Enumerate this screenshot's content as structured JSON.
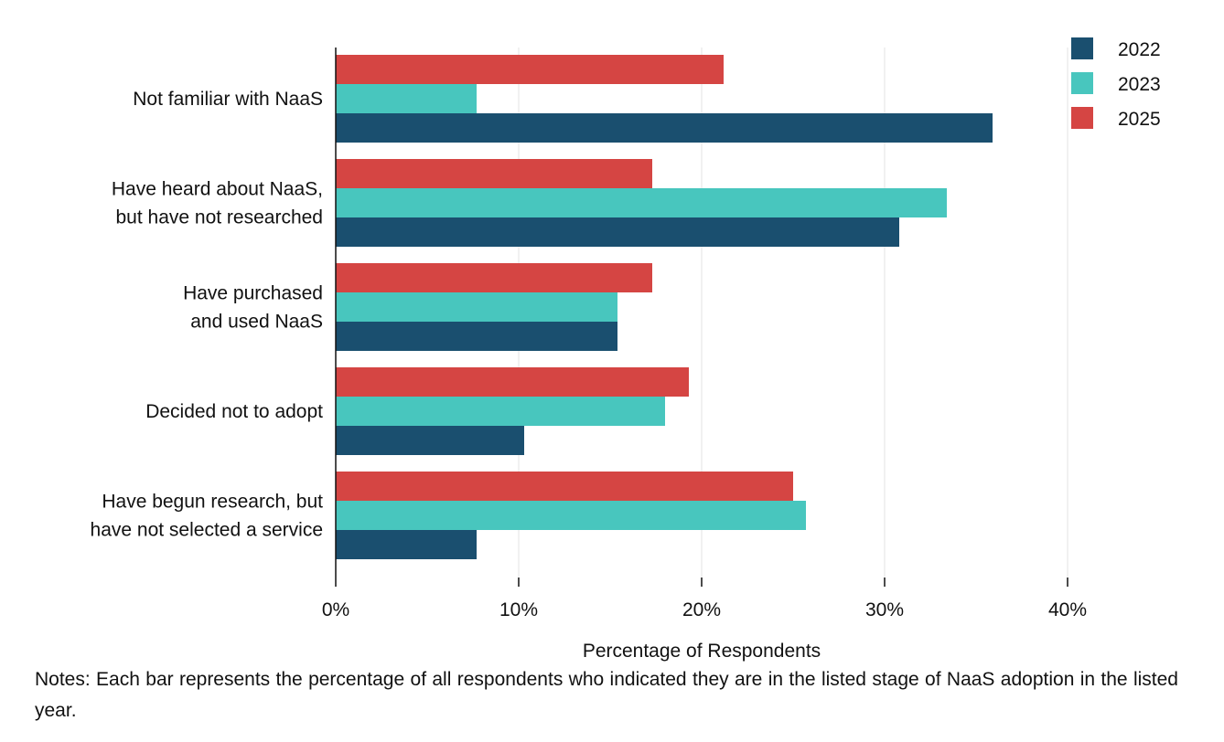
{
  "chart_data": {
    "type": "bar",
    "orientation": "horizontal",
    "categories": [
      [
        "Not familiar with NaaS"
      ],
      [
        "Have heard about NaaS,",
        "but have not researched"
      ],
      [
        "Have purchased",
        "and used NaaS"
      ],
      [
        "Decided not to adopt"
      ],
      [
        "Have begun research, but",
        "have not selected a service"
      ]
    ],
    "series": [
      {
        "name": "2025",
        "color": "#d54543",
        "values": [
          21.2,
          17.3,
          17.3,
          19.3,
          25.0
        ]
      },
      {
        "name": "2023",
        "color": "#48c6be",
        "values": [
          7.7,
          33.4,
          15.4,
          18.0,
          25.7
        ]
      },
      {
        "name": "2022",
        "color": "#1a4f6f",
        "values": [
          35.9,
          30.8,
          15.4,
          10.3,
          7.7
        ]
      }
    ],
    "legend_order": [
      "2022",
      "2023",
      "2025"
    ],
    "legend_position": "top-right",
    "xlim": [
      0,
      40
    ],
    "xticks": [
      "0%",
      "10%",
      "20%",
      "30%",
      "40%"
    ],
    "xlabel": "Percentage of Respondents",
    "grid": true
  },
  "notes": "Notes: Each bar represents the percentage of all respondents who indicated they are in the listed stage of NaaS adoption in the listed year."
}
